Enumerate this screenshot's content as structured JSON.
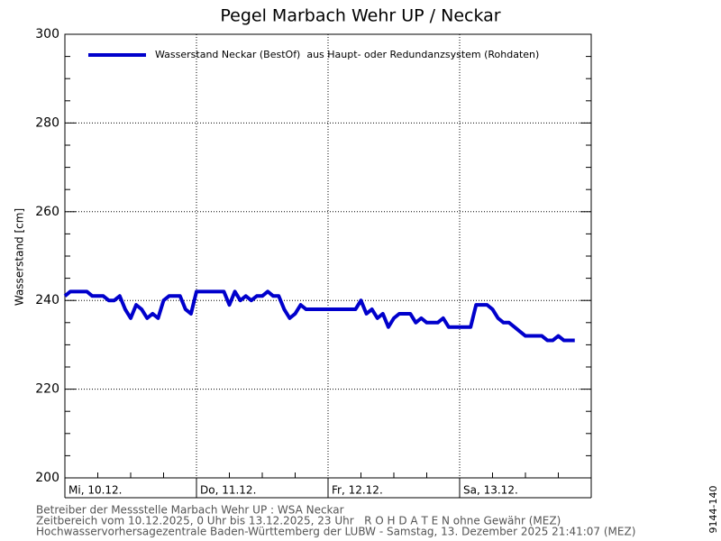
{
  "chart_data": {
    "type": "line",
    "title": "Pegel Marbach Wehr UP / Neckar",
    "ylabel": "Wasserstand [cm]",
    "x": [
      0,
      1,
      2,
      3,
      4,
      5,
      6,
      7,
      8,
      9,
      10,
      11,
      12,
      13,
      14,
      15,
      16,
      17,
      18,
      19,
      20,
      21,
      22,
      23,
      24,
      25,
      26,
      27,
      28,
      29,
      30,
      31,
      32,
      33,
      34,
      35,
      36,
      37,
      38,
      39,
      40,
      41,
      42,
      43,
      44,
      45,
      46,
      47,
      48,
      49,
      50,
      51,
      52,
      53,
      54,
      55,
      56,
      57,
      58,
      59,
      60,
      61,
      62,
      63,
      64,
      65,
      66,
      67,
      68,
      69,
      70,
      71,
      72,
      73,
      74,
      75,
      76,
      77,
      78,
      79,
      80,
      81,
      82,
      83,
      84,
      85,
      86,
      87,
      88,
      89,
      90,
      91,
      92,
      93
    ],
    "series": [
      {
        "name": "Wasserstand Neckar (BestOf)  aus Haupt- oder Redundanzsystem (Rohdaten)",
        "color": "#0000cc",
        "values": [
          241,
          242,
          242,
          242,
          242,
          241,
          241,
          241,
          240,
          240,
          241,
          238,
          236,
          239,
          238,
          236,
          237,
          236,
          240,
          241,
          241,
          241,
          238,
          237,
          242,
          242,
          242,
          242,
          242,
          242,
          239,
          242,
          240,
          241,
          240,
          241,
          241,
          242,
          241,
          241,
          238,
          236,
          237,
          239,
          238,
          238,
          238,
          238,
          238,
          238,
          238,
          238,
          238,
          238,
          240,
          237,
          238,
          236,
          237,
          234,
          236,
          237,
          237,
          237,
          235,
          236,
          235,
          235,
          235,
          236,
          234,
          234,
          234,
          234,
          234,
          239,
          239,
          239,
          238,
          236,
          235,
          235,
          234,
          233,
          232,
          232,
          232,
          232,
          231,
          231,
          232,
          231,
          231,
          231
        ]
      }
    ],
    "xlim": [
      0,
      96
    ],
    "xticks": [
      {
        "value": 0,
        "label": "Mi, 10.12."
      },
      {
        "value": 24,
        "label": "Do, 11.12."
      },
      {
        "value": 48,
        "label": "Fr, 12.12."
      },
      {
        "value": 72,
        "label": "Sa, 13.12."
      }
    ],
    "xminorticks": [
      6,
      12,
      18,
      30,
      36,
      42,
      54,
      60,
      66,
      78,
      84,
      90
    ],
    "ylim": [
      200,
      300
    ],
    "yticks": [
      200,
      220,
      240,
      260,
      280,
      300
    ],
    "yminorticks": [
      205,
      210,
      215,
      225,
      230,
      235,
      245,
      250,
      255,
      265,
      270,
      275,
      285,
      290,
      295
    ],
    "grid": true,
    "legend": "top-left",
    "footer": [
      "Betreiber der Messstelle Marbach Wehr UP : WSA Neckar",
      "Zeitbereich vom 10.12.2025, 0 Uhr bis 13.12.2025, 23 Uhr   R O H D A T E N ohne Gewähr (MEZ)",
      "Hochwasservorhersagezentrale Baden-Württemberg der LUBW - Samstag, 13. Dezember 2025 21:41:07 (MEZ)"
    ],
    "side_label": "9144-140"
  }
}
